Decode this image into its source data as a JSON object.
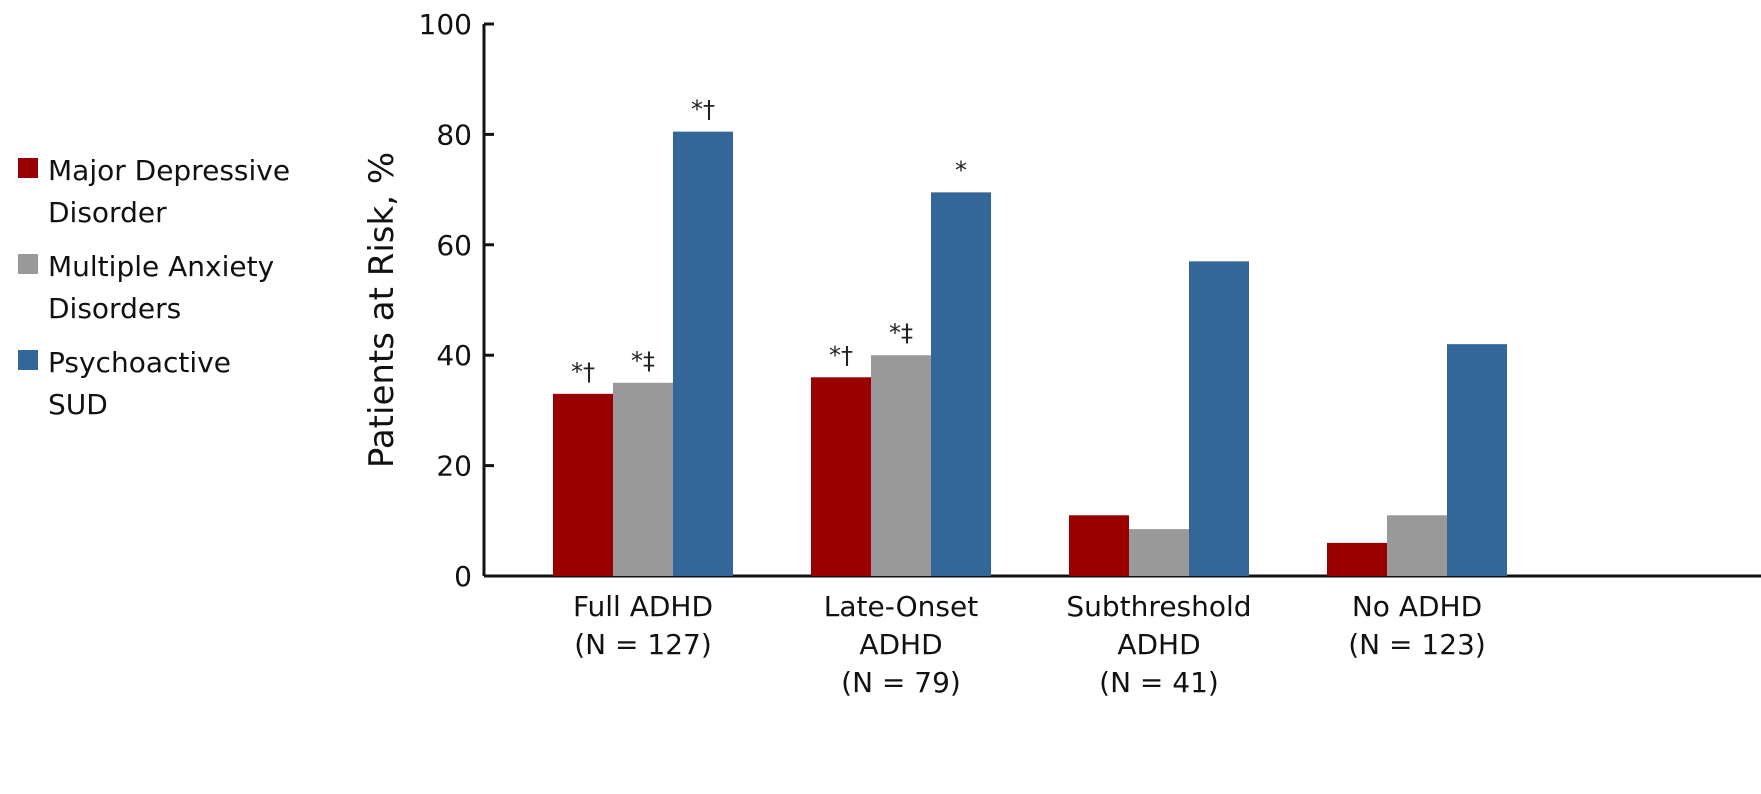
{
  "chart_data": {
    "type": "bar",
    "title": "",
    "xlabel": "",
    "ylabel": "Patients at Risk, %",
    "ylim": [
      0,
      100
    ],
    "yticks": [
      0,
      20,
      40,
      60,
      80,
      100
    ],
    "grid": false,
    "legend_position": "left",
    "categories": [
      {
        "lines": [
          "Full ADHD",
          "(N = 127)"
        ]
      },
      {
        "lines": [
          "Late-Onset",
          "ADHD",
          "(N = 79)"
        ]
      },
      {
        "lines": [
          "Subthreshold",
          "ADHD",
          "(N = 41)"
        ]
      },
      {
        "lines": [
          "No ADHD",
          "(N = 123)"
        ]
      }
    ],
    "series": [
      {
        "name_lines": [
          "Major Depressive",
          "Disorder"
        ],
        "color": "#990000",
        "values": [
          33,
          36,
          11,
          6
        ],
        "markers": [
          "*†",
          "*†",
          "",
          ""
        ]
      },
      {
        "name_lines": [
          "Multiple Anxiety",
          "Disorders"
        ],
        "color": "#999999",
        "values": [
          35,
          40,
          8.5,
          11
        ],
        "markers": [
          "*‡",
          "*‡",
          "",
          ""
        ]
      },
      {
        "name_lines": [
          "Psychoactive",
          "SUD"
        ],
        "color": "#336699",
        "values": [
          80.5,
          69.5,
          57,
          42
        ],
        "markers": [
          "*†",
          "*",
          "",
          ""
        ]
      }
    ]
  }
}
